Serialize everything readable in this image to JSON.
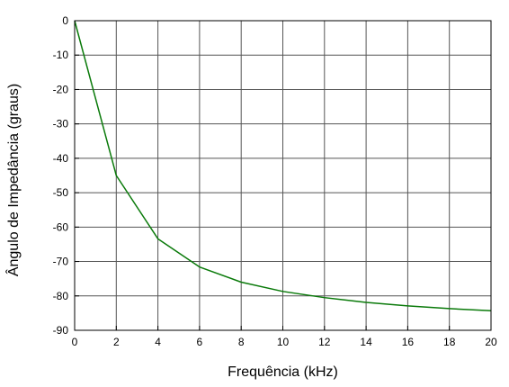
{
  "chart_data": {
    "type": "line",
    "title": "",
    "xlabel": "Frequência (kHz)",
    "ylabel": "Ângulo de Impedância (graus)",
    "xlim": [
      0,
      20
    ],
    "ylim": [
      -90,
      0
    ],
    "xticks": [
      "0",
      "2",
      "4",
      "6",
      "8",
      "10",
      "12",
      "14",
      "16",
      "18",
      "20"
    ],
    "yticks": [
      "0",
      "-10",
      "-20",
      "-30",
      "-40",
      "-50",
      "-60",
      "-70",
      "-80",
      "-90"
    ],
    "grid": true,
    "series": [
      {
        "color": "#0a7a0a",
        "x": [
          0,
          2,
          4,
          6,
          8,
          10,
          12,
          14,
          16,
          18,
          20
        ],
        "y": [
          0,
          -45,
          -63.4,
          -71.6,
          -76,
          -78.7,
          -80.5,
          -81.9,
          -82.9,
          -83.7,
          -84.3
        ]
      }
    ]
  }
}
